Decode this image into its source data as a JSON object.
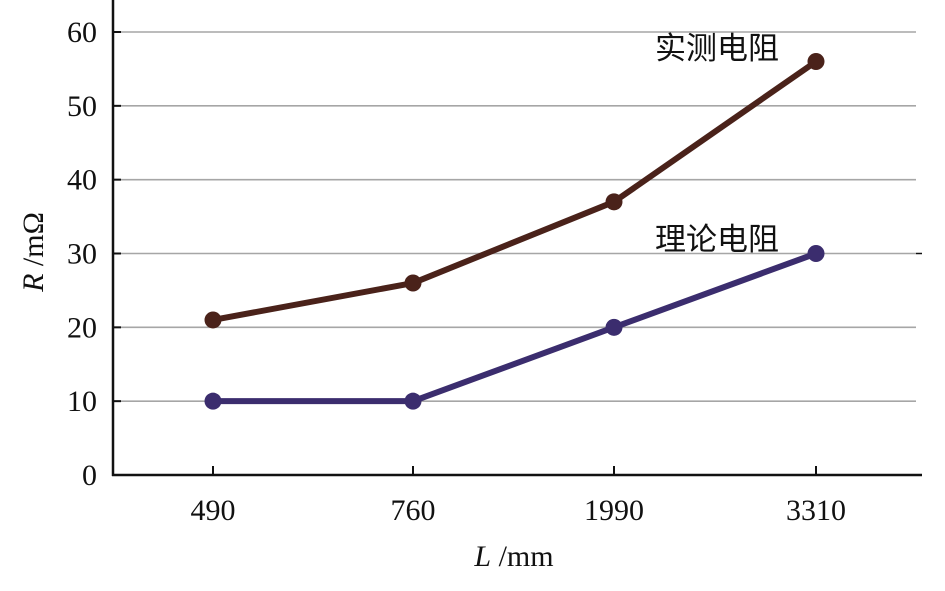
{
  "chart_data": {
    "type": "line",
    "categories": [
      "490",
      "760",
      "1990",
      "3310"
    ],
    "series": [
      {
        "name": "实测电阻",
        "values": [
          21,
          26,
          37,
          56
        ],
        "color": "#4a221a"
      },
      {
        "name": "理论电阻",
        "values": [
          10,
          10,
          20,
          30
        ],
        "color": "#3b2d6e"
      }
    ],
    "xlabel": {
      "var": "L",
      "unit": " /mm"
    },
    "ylabel": {
      "var": "R",
      "unit": " /mΩ"
    },
    "ylim": [
      0,
      60
    ],
    "yticks": [
      "0",
      "10",
      "20",
      "30",
      "40",
      "50",
      "60"
    ],
    "grid": true,
    "grid_color": "#a6a6a6",
    "axis_color": "#111111"
  }
}
